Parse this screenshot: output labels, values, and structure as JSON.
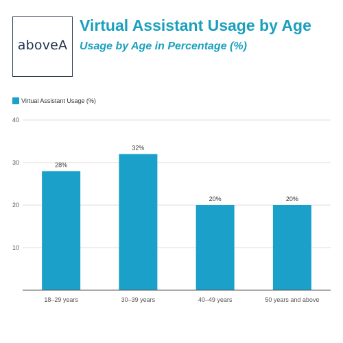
{
  "logo": {
    "text": "aboveA"
  },
  "header": {
    "title": "Virtual Assistant Usage by Age",
    "subtitle": "Usage by Age in Percentage (%)"
  },
  "colors": {
    "title": "#1aa0bd",
    "bar": "#1aa0c9",
    "grid": "#dddddd",
    "axis": "#555555"
  },
  "chart_data": {
    "type": "bar",
    "categories": [
      "18–29 years",
      "30–39 years",
      "40–49 years",
      "50 years and above"
    ],
    "series": [
      {
        "name": "Virtual Assistant Usage (%)",
        "values": [
          28,
          32,
          20,
          20
        ]
      }
    ],
    "data_labels": [
      "28%",
      "32%",
      "20%",
      "20%"
    ],
    "ylim": [
      0,
      40
    ],
    "yticks": [
      10,
      20,
      30,
      40
    ],
    "grid": true,
    "legend_position": "top-left"
  }
}
